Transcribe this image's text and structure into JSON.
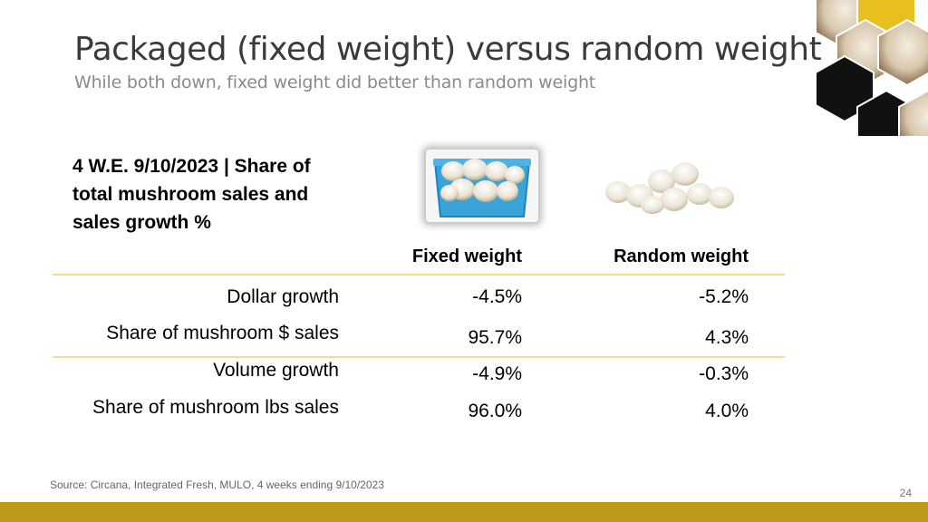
{
  "title": "Packaged (fixed weight) versus random weight",
  "subtitle": "While both down, fixed weight did better than random weight",
  "table": {
    "heading": "4 W.E. 9/10/2023 | Share of total mushroom sales and sales growth %",
    "columns": [
      "Fixed weight",
      "Random weight"
    ],
    "rows": [
      {
        "label": "Dollar growth",
        "fixed": "-4.5%",
        "random": "-5.2%"
      },
      {
        "label": "Share of mushroom $ sales",
        "fixed": "95.7%",
        "random": "4.3%"
      },
      {
        "label": "Volume growth",
        "fixed": "-4.9%",
        "random": "-0.3%"
      },
      {
        "label": "Share of mushroom lbs sales",
        "fixed": "96.0%",
        "random": "4.0%"
      }
    ]
  },
  "source": "Source: Circana, Integrated Fresh, MULO, 4 weeks ending 9/10/2023",
  "page_number": "24",
  "colors": {
    "title": "#3b3b3b",
    "subtitle": "#8a8a8a",
    "rule": "#f3dc8a",
    "bottom_bar": "#bd9a17",
    "honeycomb_dark": "#111111",
    "honeycomb_gold": "#e7bf1f",
    "tray_blue": "#3aa3d8"
  }
}
